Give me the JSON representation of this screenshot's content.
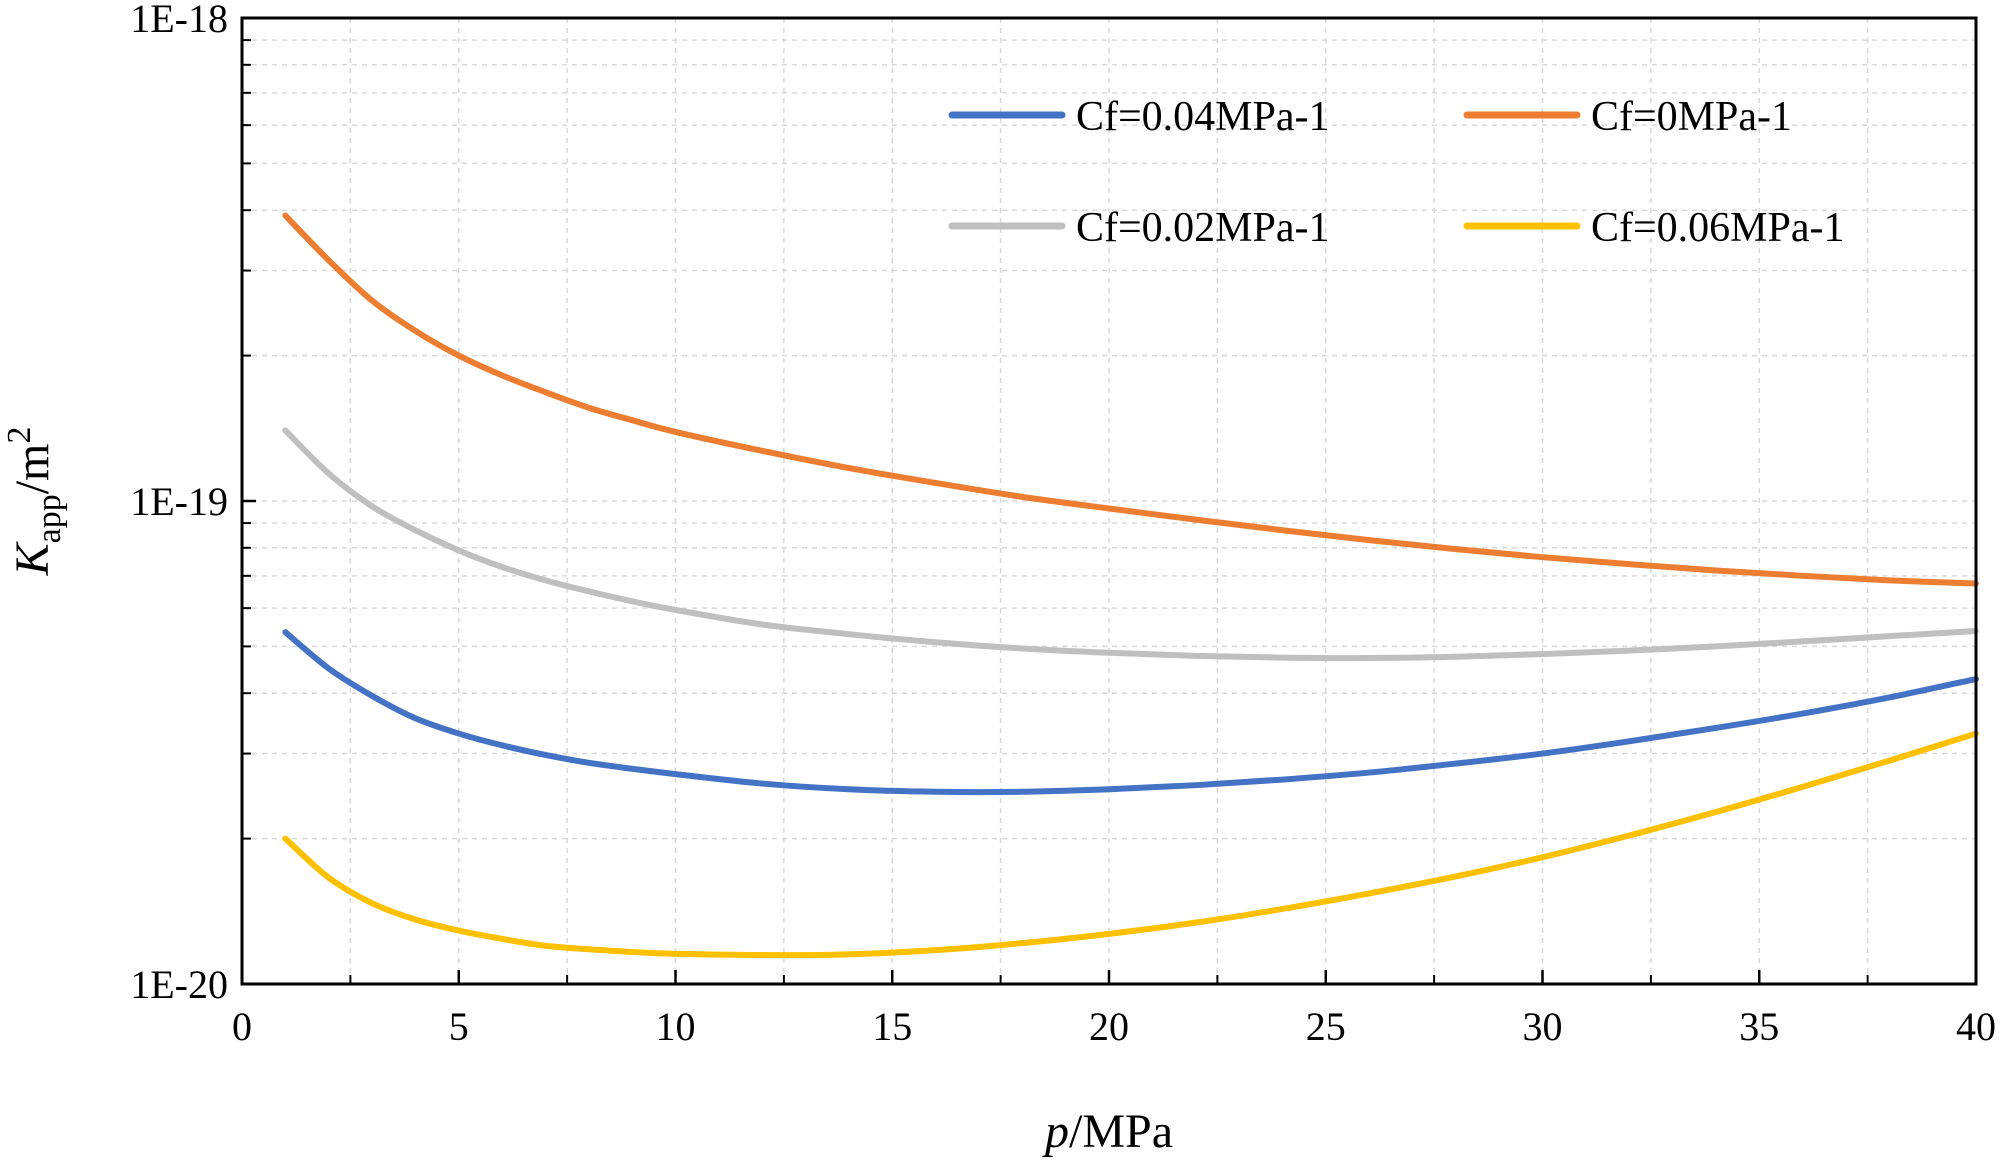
{
  "chart_data": {
    "type": "line",
    "title": "",
    "xlabel_italic": "p",
    "xlabel_rest": "/MPa",
    "ylabel_italic": "K",
    "ylabel_sub": "app",
    "ylabel_rest": "/m",
    "ylabel_sup": "2",
    "xlim": [
      0,
      40
    ],
    "ylim": [
      1e-20,
      1e-18
    ],
    "yscale": "log",
    "x_ticks": [
      0,
      5,
      10,
      15,
      20,
      25,
      30,
      35,
      40
    ],
    "x_tick_labels": [
      "0",
      "5",
      "10",
      "15",
      "20",
      "25",
      "30",
      "35",
      "40"
    ],
    "y_ticks": [
      1e-20,
      1e-19,
      1e-18
    ],
    "y_tick_labels": [
      "1E-20",
      "1E-19",
      "1E-18"
    ],
    "grid": true,
    "legend_position": "top-right",
    "x": [
      1,
      2,
      3,
      4,
      5,
      6,
      7,
      8,
      9,
      10,
      12,
      14,
      16,
      18,
      20,
      22,
      24,
      26,
      28,
      30,
      32,
      34,
      36,
      38,
      40
    ],
    "series": [
      {
        "name": "Cf=0.04MPa-1",
        "color": "#4472c4",
        "values": [
          5.35e-20,
          4.5e-20,
          3.95e-20,
          3.55e-20,
          3.3e-20,
          3.12e-20,
          2.98e-20,
          2.87e-20,
          2.79e-20,
          2.72e-20,
          2.6e-20,
          2.53e-20,
          2.5e-20,
          2.5e-20,
          2.53e-20,
          2.58e-20,
          2.65e-20,
          2.74e-20,
          2.86e-20,
          3e-20,
          3.18e-20,
          3.39e-20,
          3.63e-20,
          3.92e-20,
          4.28e-20
        ]
      },
      {
        "name": "Cf=0MPa-1",
        "color": "#ed7d31",
        "values": [
          3.9e-19,
          3.15e-19,
          2.6e-19,
          2.25e-19,
          2e-19,
          1.82e-19,
          1.68e-19,
          1.56e-19,
          1.47e-19,
          1.39e-19,
          1.27e-19,
          1.17e-19,
          1.09e-19,
          1.02e-19,
          9.65e-20,
          9.15e-20,
          8.7e-20,
          8.3e-20,
          7.95e-20,
          7.65e-20,
          7.4e-20,
          7.18e-20,
          7e-20,
          6.85e-20,
          6.75e-20
        ]
      },
      {
        "name": "Cf=0.02MPa-1",
        "color": "#bfbfbf",
        "values": [
          1.4e-19,
          1.14e-19,
          9.75e-20,
          8.7e-20,
          7.9e-20,
          7.3e-20,
          6.85e-20,
          6.5e-20,
          6.2e-20,
          5.95e-20,
          5.55e-20,
          5.3e-20,
          5.1e-20,
          4.95e-20,
          4.85e-20,
          4.78e-20,
          4.74e-20,
          4.73e-20,
          4.76e-20,
          4.82e-20,
          4.9e-20,
          5e-20,
          5.12e-20,
          5.25e-20,
          5.38e-20
        ]
      },
      {
        "name": "Cf=0.06MPa-1",
        "color": "#ffc000",
        "values": [
          2e-20,
          1.66e-20,
          1.47e-20,
          1.36e-20,
          1.29e-20,
          1.24e-20,
          1.2e-20,
          1.18e-20,
          1.165e-20,
          1.155e-20,
          1.148e-20,
          1.152e-20,
          1.175e-20,
          1.215e-20,
          1.27e-20,
          1.34e-20,
          1.43e-20,
          1.54e-20,
          1.67e-20,
          1.83e-20,
          2.03e-20,
          2.27e-20,
          2.56e-20,
          2.9e-20,
          3.3e-20
        ]
      }
    ]
  }
}
